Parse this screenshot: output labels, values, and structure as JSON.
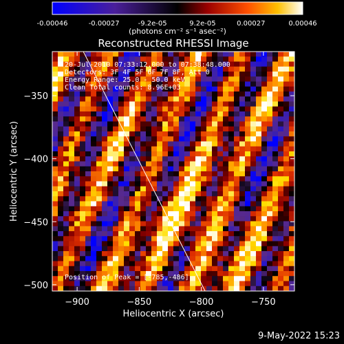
{
  "colorbar": {
    "tick_labels": [
      "-0.00046",
      "-0.00027",
      "-9.2e-05",
      "9.2e-05",
      "0.00027",
      "0.00046"
    ],
    "tick_values": [
      -0.00046,
      -0.00027,
      -9.2e-05,
      9.2e-05,
      0.00027,
      0.00046
    ],
    "range": [
      -0.00046,
      0.00046
    ],
    "units": "(photons cm⁻² s⁻¹ asec⁻²)"
  },
  "chart_data": {
    "type": "heatmap",
    "title": "Reconstructed RHESSI Image",
    "xlabel": "Heliocentric X (arcsec)",
    "ylabel": "Heliocentric Y (arcsec)",
    "xlim": [
      -920,
      -725
    ],
    "ylim": [
      -505,
      -315
    ],
    "x_ticks": [
      -900,
      -850,
      -800,
      -750
    ],
    "x_tick_labels": [
      "−900",
      "−850",
      "−800",
      "−750"
    ],
    "y_ticks": [
      -350,
      -400,
      -450,
      -500
    ],
    "y_tick_labels": [
      "−350",
      "−400",
      "−450",
      "−500"
    ],
    "limb_line": {
      "x": [
        -895,
        -797
      ],
      "y": [
        -315,
        -505
      ]
    },
    "peak": {
      "x": -785,
      "y": -486
    },
    "annotations": [
      "20-Jul-2010 07:33:12.000 to 07:38:48.000",
      "Detectors: 3F 4F 5F 6F 7F 8F, Att 0",
      "Energy Range: 25.0 - 50.0 keV",
      "Clean     Total counts: 8.96E+03"
    ],
    "peak_label": "Position of Peak = [-785,-486]",
    "colormap": [
      "#0000ff",
      "#3a1fb0",
      "#5a2a8a",
      "#000000",
      "#8a0000",
      "#e03000",
      "#ff9000",
      "#ffe000",
      "#ffffff"
    ]
  },
  "footer": {
    "date": "9-May-2022 15:23"
  }
}
